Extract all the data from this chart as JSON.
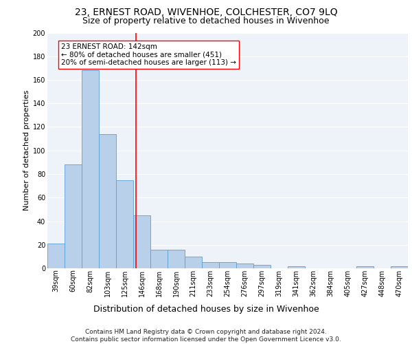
{
  "title1": "23, ERNEST ROAD, WIVENHOE, COLCHESTER, CO7 9LQ",
  "title2": "Size of property relative to detached houses in Wivenhoe",
  "xlabel": "Distribution of detached houses by size in Wivenhoe",
  "ylabel": "Number of detached properties",
  "bar_color": "#b8d0ea",
  "bar_edge_color": "#5a9fd4",
  "categories": [
    "39sqm",
    "60sqm",
    "82sqm",
    "103sqm",
    "125sqm",
    "146sqm",
    "168sqm",
    "190sqm",
    "211sqm",
    "233sqm",
    "254sqm",
    "276sqm",
    "297sqm",
    "319sqm",
    "341sqm",
    "362sqm",
    "384sqm",
    "405sqm",
    "427sqm",
    "448sqm",
    "470sqm"
  ],
  "values": [
    21,
    88,
    168,
    114,
    75,
    45,
    16,
    16,
    10,
    5,
    5,
    4,
    3,
    0,
    2,
    0,
    0,
    0,
    2,
    0,
    2
  ],
  "annotation_text": "23 ERNEST ROAD: 142sqm\n← 80% of detached houses are smaller (451)\n20% of semi-detached houses are larger (113) →",
  "annotation_box_color": "white",
  "annotation_box_edgecolor": "red",
  "vline_x_idx": 4.65,
  "vline_color": "red",
  "ylim": [
    0,
    200
  ],
  "yticks": [
    0,
    20,
    40,
    60,
    80,
    100,
    120,
    140,
    160,
    180,
    200
  ],
  "background_color": "#eef2f9",
  "grid_color": "white",
  "footer_text": "Contains HM Land Registry data © Crown copyright and database right 2024.\nContains public sector information licensed under the Open Government Licence v3.0.",
  "title1_fontsize": 10,
  "title2_fontsize": 9,
  "xlabel_fontsize": 9,
  "ylabel_fontsize": 8,
  "tick_fontsize": 7,
  "annotation_fontsize": 7.5,
  "footer_fontsize": 6.5
}
